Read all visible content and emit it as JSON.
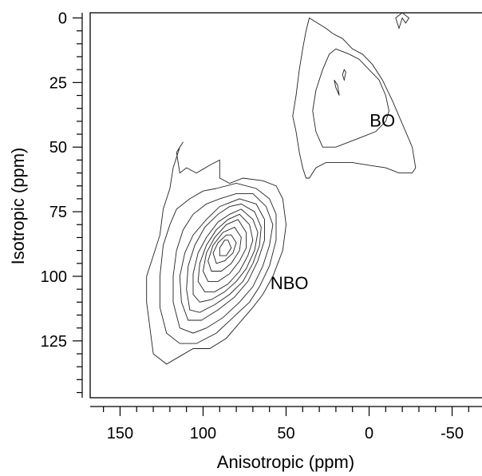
{
  "chart_data": {
    "type": "contour",
    "xlabel": "Anisotropic (ppm)",
    "ylabel": "Isotropic (ppm)",
    "xlim": [
      168,
      -68
    ],
    "ylim": [
      147,
      -2
    ],
    "x_ticks": [
      150,
      100,
      50,
      0,
      -50
    ],
    "x_tick_labels": [
      "150",
      "100",
      "50",
      "0",
      "-50"
    ],
    "y_ticks": [
      0,
      25,
      50,
      75,
      100,
      125
    ],
    "y_tick_labels": [
      "0",
      "25",
      "50",
      "75",
      "100",
      "125"
    ],
    "x_minor_step": 10,
    "y_minor_step": 5,
    "annotations": [
      {
        "text": "BO",
        "x": -8,
        "y": 42
      },
      {
        "text": "NBO",
        "x": 48,
        "y": 105
      }
    ],
    "peaks": [
      {
        "name": "NBO",
        "contours": [
          [
            [
              112,
              48
            ],
            [
              116,
              52
            ],
            [
              114,
              60
            ],
            [
              110,
              58
            ],
            [
              104,
              60
            ],
            [
              96,
              57
            ],
            [
              90,
              55
            ],
            [
              90,
              62
            ],
            [
              84,
              64
            ],
            [
              76,
              62
            ],
            [
              64,
              63
            ],
            [
              56,
              65
            ],
            [
              52,
              70
            ],
            [
              50,
              80
            ],
            [
              52,
              90
            ],
            [
              58,
              100
            ],
            [
              64,
              107
            ],
            [
              70,
              112
            ],
            [
              78,
              118
            ],
            [
              86,
              124
            ],
            [
              96,
              128
            ],
            [
              106,
              128
            ],
            [
              114,
              131
            ],
            [
              122,
              134
            ],
            [
              130,
              130
            ],
            [
              132,
              120
            ],
            [
              134,
              110
            ],
            [
              134,
              100
            ],
            [
              130,
              92
            ],
            [
              126,
              84
            ],
            [
              124,
              74
            ],
            [
              120,
              66
            ],
            [
              118,
              58
            ],
            [
              114,
              50
            ],
            [
              112,
              48
            ]
          ],
          [
            [
              92,
              66
            ],
            [
              80,
              64
            ],
            [
              68,
              66
            ],
            [
              60,
              70
            ],
            [
              56,
              76
            ],
            [
              56,
              86
            ],
            [
              60,
              96
            ],
            [
              66,
              104
            ],
            [
              72,
              110
            ],
            [
              82,
              116
            ],
            [
              92,
              122
            ],
            [
              104,
              126
            ],
            [
              114,
              126
            ],
            [
              122,
              122
            ],
            [
              126,
              112
            ],
            [
              126,
              100
            ],
            [
              124,
              88
            ],
            [
              120,
              80
            ],
            [
              116,
              74
            ],
            [
              108,
              70
            ],
            [
              100,
              67
            ],
            [
              92,
              66
            ]
          ],
          [
            [
              80,
              68
            ],
            [
              70,
              68
            ],
            [
              62,
              73
            ],
            [
              58,
              80
            ],
            [
              60,
              88
            ],
            [
              64,
              96
            ],
            [
              70,
              104
            ],
            [
              78,
              110
            ],
            [
              88,
              116
            ],
            [
              98,
              120
            ],
            [
              106,
              122
            ],
            [
              114,
              120
            ],
            [
              118,
              110
            ],
            [
              118,
              100
            ],
            [
              116,
              90
            ],
            [
              112,
              82
            ],
            [
              106,
              76
            ],
            [
              98,
              72
            ],
            [
              90,
              70
            ],
            [
              80,
              68
            ]
          ],
          [
            [
              78,
              70
            ],
            [
              68,
              72
            ],
            [
              63,
              78
            ],
            [
              63,
              86
            ],
            [
              67,
              94
            ],
            [
              73,
              102
            ],
            [
              81,
              108
            ],
            [
              91,
              113
            ],
            [
              101,
              117
            ],
            [
              109,
              117
            ],
            [
              113,
              110
            ],
            [
              114,
              100
            ],
            [
              111,
              91
            ],
            [
              106,
              84
            ],
            [
              98,
              78
            ],
            [
              90,
              73
            ],
            [
              78,
              70
            ]
          ],
          [
            [
              77,
              72
            ],
            [
              69,
              75
            ],
            [
              65,
              81
            ],
            [
              66,
              88
            ],
            [
              70,
              95
            ],
            [
              76,
              102
            ],
            [
              84,
              107
            ],
            [
              93,
              111
            ],
            [
              102,
              114
            ],
            [
              108,
              113
            ],
            [
              110,
              105
            ],
            [
              109,
              96
            ],
            [
              105,
              88
            ],
            [
              99,
              81
            ],
            [
              91,
              76
            ],
            [
              84,
              73
            ],
            [
              77,
              72
            ]
          ],
          [
            [
              77,
              74
            ],
            [
              70,
              78
            ],
            [
              67,
              83
            ],
            [
              69,
              90
            ],
            [
              74,
              97
            ],
            [
              80,
              102
            ],
            [
              87,
              106
            ],
            [
              95,
              109
            ],
            [
              102,
              110
            ],
            [
              106,
              107
            ],
            [
              106,
              99
            ],
            [
              103,
              91
            ],
            [
              98,
              85
            ],
            [
              91,
              79
            ],
            [
              84,
              76
            ],
            [
              77,
              74
            ]
          ],
          [
            [
              78,
              76
            ],
            [
              72,
              80
            ],
            [
              70,
              86
            ],
            [
              73,
              92
            ],
            [
              78,
              98
            ],
            [
              85,
              103
            ],
            [
              93,
              106
            ],
            [
              99,
              106
            ],
            [
              103,
              102
            ],
            [
              102,
              95
            ],
            [
              98,
              88
            ],
            [
              92,
              82
            ],
            [
              85,
              78
            ],
            [
              78,
              76
            ]
          ],
          [
            [
              79,
              78
            ],
            [
              74,
              83
            ],
            [
              74,
              89
            ],
            [
              78,
              94
            ],
            [
              84,
              99
            ],
            [
              91,
              102
            ],
            [
              97,
              102
            ],
            [
              100,
              98
            ],
            [
              98,
              91
            ],
            [
              93,
              85
            ],
            [
              86,
              80
            ],
            [
              79,
              78
            ]
          ],
          [
            [
              81,
              81
            ],
            [
              77,
              85
            ],
            [
              78,
              90
            ],
            [
              83,
              95
            ],
            [
              89,
              98
            ],
            [
              95,
              98
            ],
            [
              97,
              94
            ],
            [
              94,
              88
            ],
            [
              88,
              83
            ],
            [
              81,
              81
            ]
          ],
          [
            [
              83,
              84
            ],
            [
              80,
              87
            ],
            [
              82,
              91
            ],
            [
              87,
              94
            ],
            [
              92,
              95
            ],
            [
              94,
              91
            ],
            [
              91,
              87
            ],
            [
              86,
              84
            ],
            [
              83,
              84
            ]
          ],
          [
            [
              85,
              86
            ],
            [
              83,
              89
            ],
            [
              86,
              92
            ],
            [
              90,
              92
            ],
            [
              90,
              89
            ],
            [
              87,
              86
            ],
            [
              85,
              86
            ]
          ]
        ]
      },
      {
        "name": "BO",
        "contours": [
          [
            [
              36,
              0
            ],
            [
              26,
              4
            ],
            [
              22,
              6
            ],
            [
              16,
              8
            ],
            [
              10,
              12
            ],
            [
              4,
              14
            ],
            [
              -2,
              18
            ],
            [
              -8,
              24
            ],
            [
              -14,
              32
            ],
            [
              -18,
              38
            ],
            [
              -22,
              44
            ],
            [
              -26,
              50
            ],
            [
              -28,
              58
            ],
            [
              -26,
              60
            ],
            [
              -18,
              60
            ],
            [
              -10,
              58
            ],
            [
              0,
              57
            ],
            [
              10,
              56
            ],
            [
              18,
              56
            ],
            [
              26,
              56
            ],
            [
              32,
              58
            ],
            [
              36,
              62
            ],
            [
              38,
              62
            ],
            [
              40,
              58
            ],
            [
              42,
              52
            ],
            [
              44,
              44
            ],
            [
              46,
              38
            ],
            [
              44,
              30
            ],
            [
              42,
              20
            ],
            [
              40,
              12
            ],
            [
              38,
              5
            ],
            [
              36,
              0
            ]
          ],
          [
            [
              20,
              12
            ],
            [
              12,
              14
            ],
            [
              6,
              16
            ],
            [
              0,
              20
            ],
            [
              -6,
              24
            ],
            [
              -10,
              30
            ],
            [
              -12,
              36
            ],
            [
              -10,
              40
            ],
            [
              -4,
              44
            ],
            [
              4,
              46
            ],
            [
              12,
              48
            ],
            [
              20,
              50
            ],
            [
              28,
              50
            ],
            [
              32,
              44
            ],
            [
              34,
              36
            ],
            [
              32,
              28
            ],
            [
              28,
              20
            ],
            [
              24,
              14
            ],
            [
              20,
              12
            ]
          ],
          [
            [
              -24,
              0
            ],
            [
              -22,
              2
            ],
            [
              -20,
              0
            ],
            [
              -18,
              4
            ],
            [
              -16,
              0
            ],
            [
              -20,
              -2
            ],
            [
              -24,
              0
            ]
          ],
          [
            [
              21,
              24
            ],
            [
              20,
              27
            ],
            [
              18,
              30
            ],
            [
              19,
              26
            ],
            [
              21,
              24
            ]
          ],
          [
            [
              15,
              20
            ],
            [
              16,
              22
            ],
            [
              15,
              24
            ],
            [
              14,
              21
            ],
            [
              15,
              20
            ]
          ]
        ]
      }
    ]
  }
}
